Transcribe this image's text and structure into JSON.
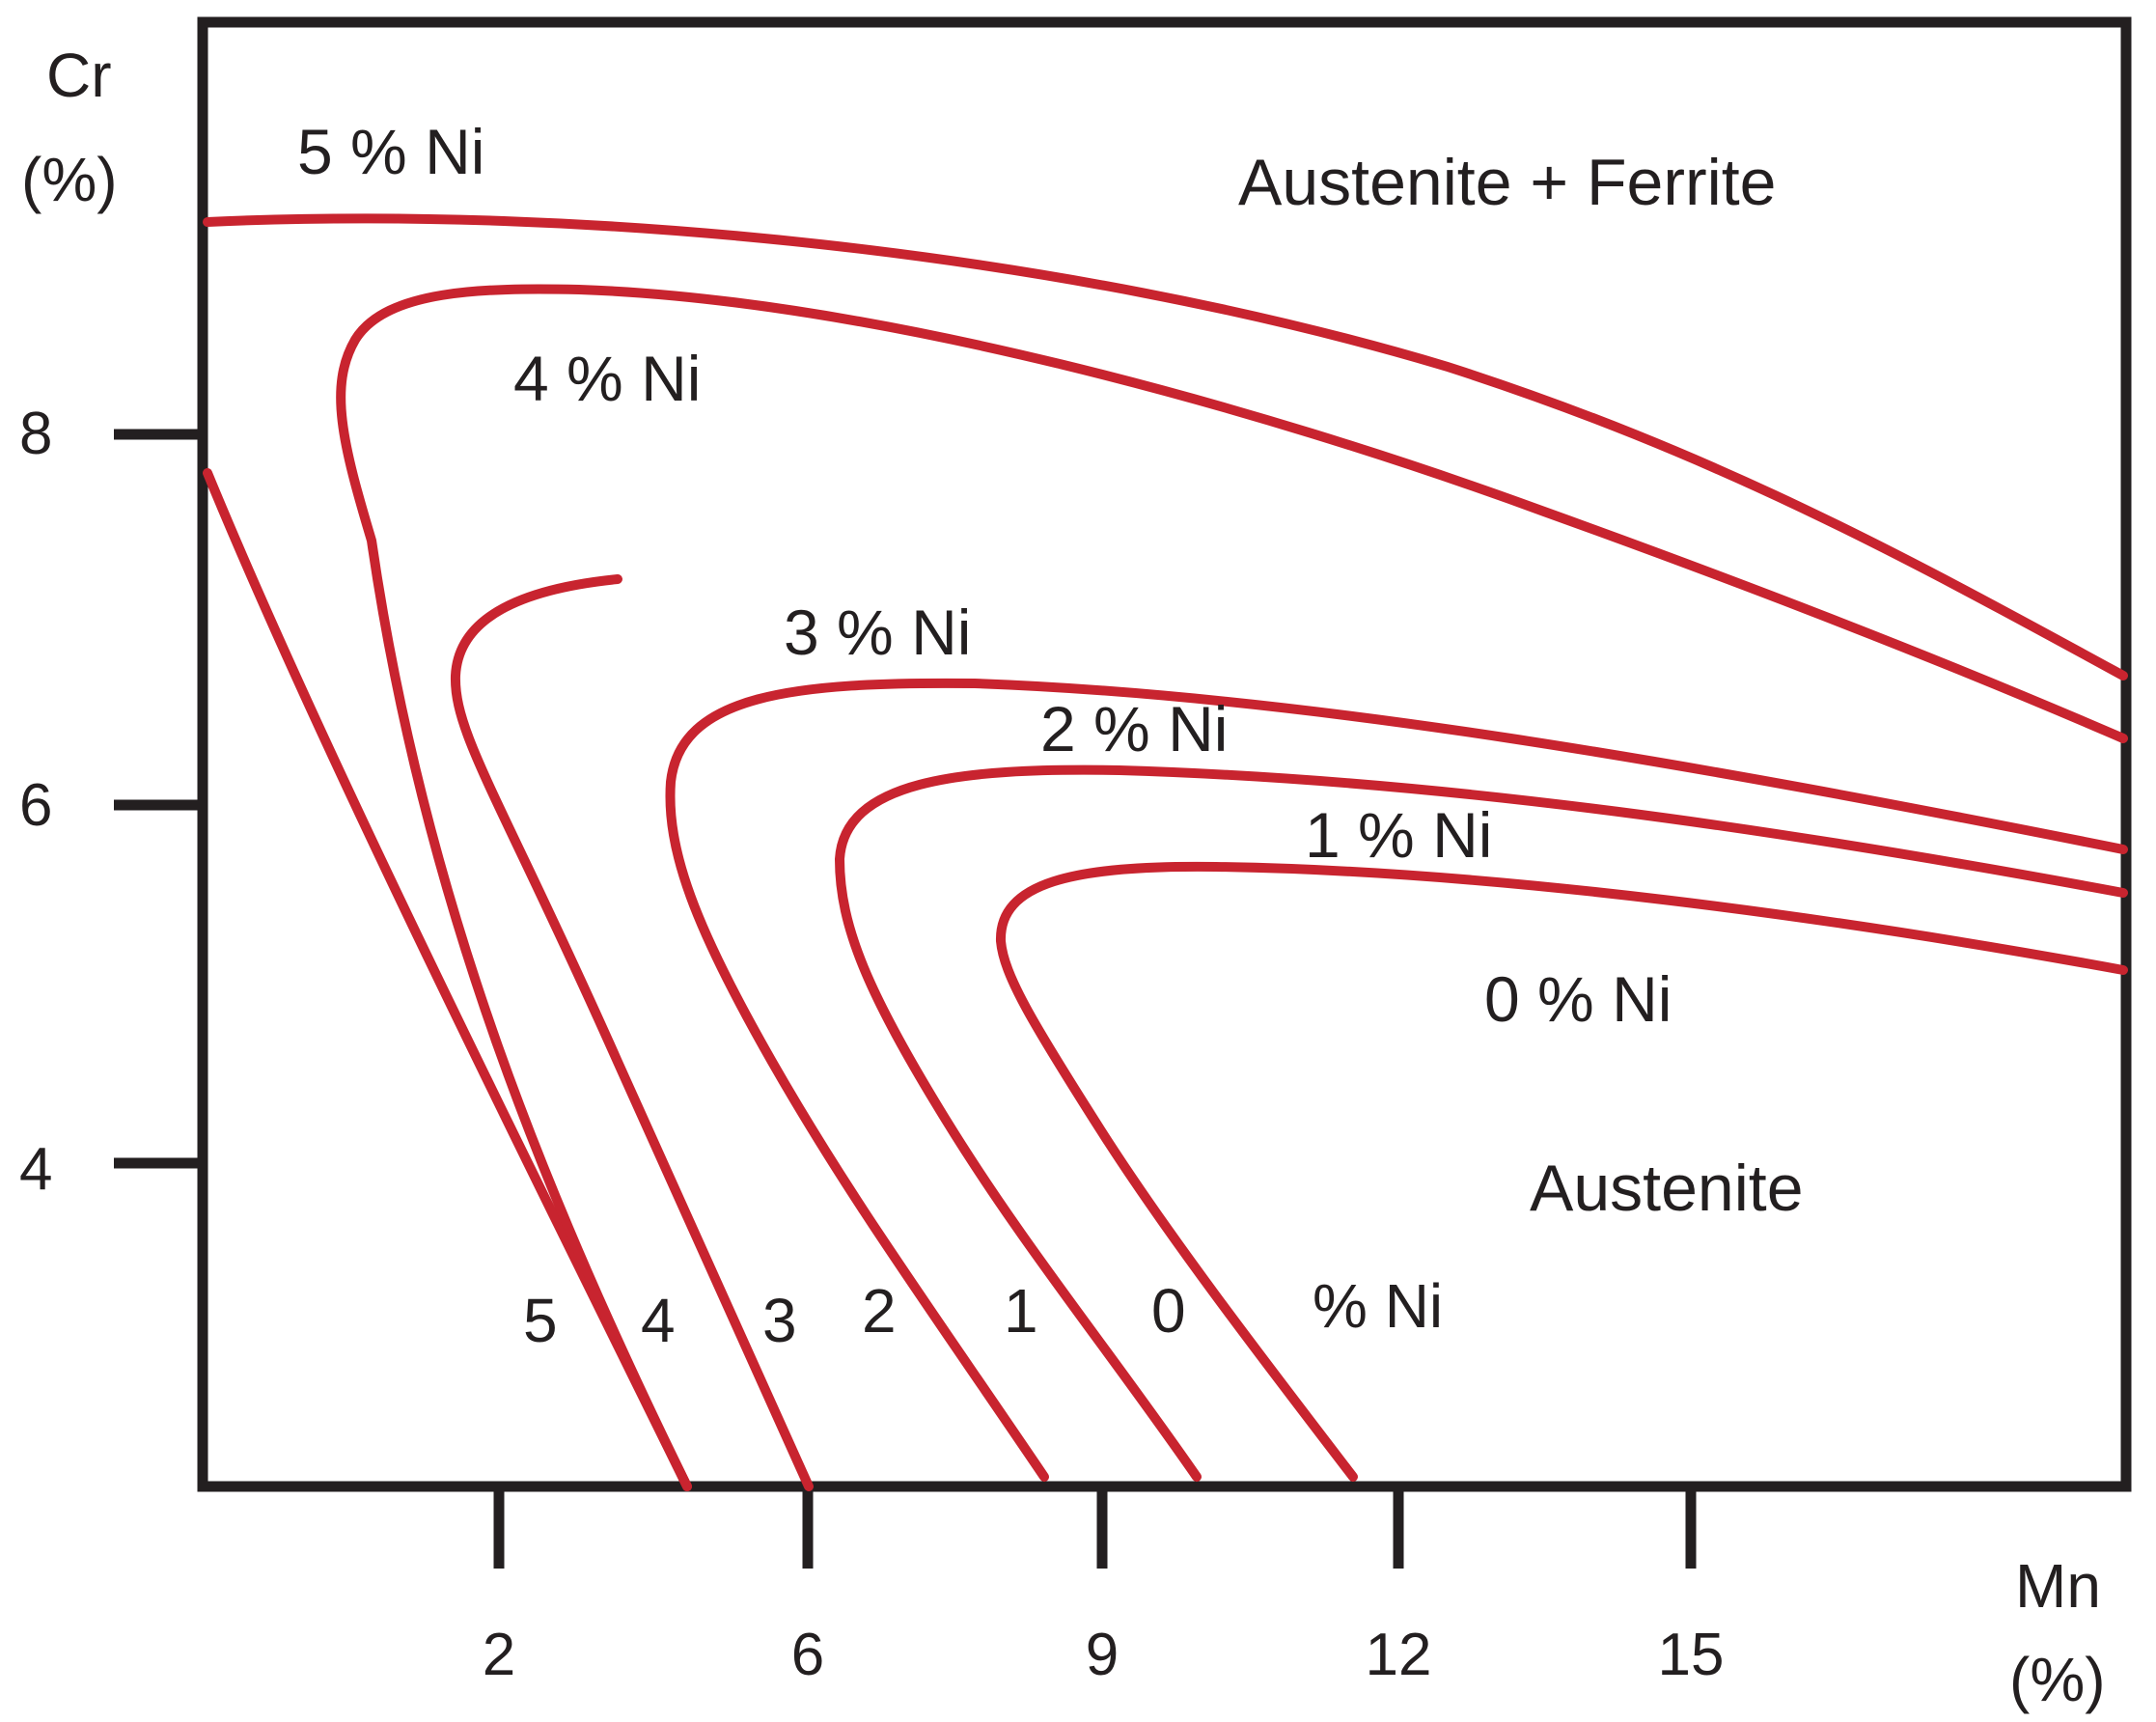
{
  "chart_data": {
    "type": "line",
    "x_axis": {
      "label_top": "Mn",
      "label_bottom": "(%)",
      "ticks": [
        "2",
        "6",
        "9",
        "12",
        "15"
      ]
    },
    "y_axis": {
      "label_top": "Cr",
      "label_bottom": "(%)",
      "ticks": [
        "8",
        "6",
        "4"
      ]
    },
    "regions": {
      "upper": "Austenite + Ferrite",
      "lower": "Austenite"
    },
    "series": [
      {
        "name": "5 % Ni",
        "bottom_label": "5"
      },
      {
        "name": "4 % Ni",
        "bottom_label": "4"
      },
      {
        "name": "3 % Ni",
        "bottom_label": "3"
      },
      {
        "name": "2 % Ni",
        "bottom_label": "2"
      },
      {
        "name": "1 % Ni",
        "bottom_label": "1"
      },
      {
        "name": "0 % Ni",
        "bottom_label": "0"
      }
    ],
    "bottom_unit_label": "% Ni",
    "line_color": "#c8242f",
    "frame_color": "#231f20",
    "grid": false
  }
}
